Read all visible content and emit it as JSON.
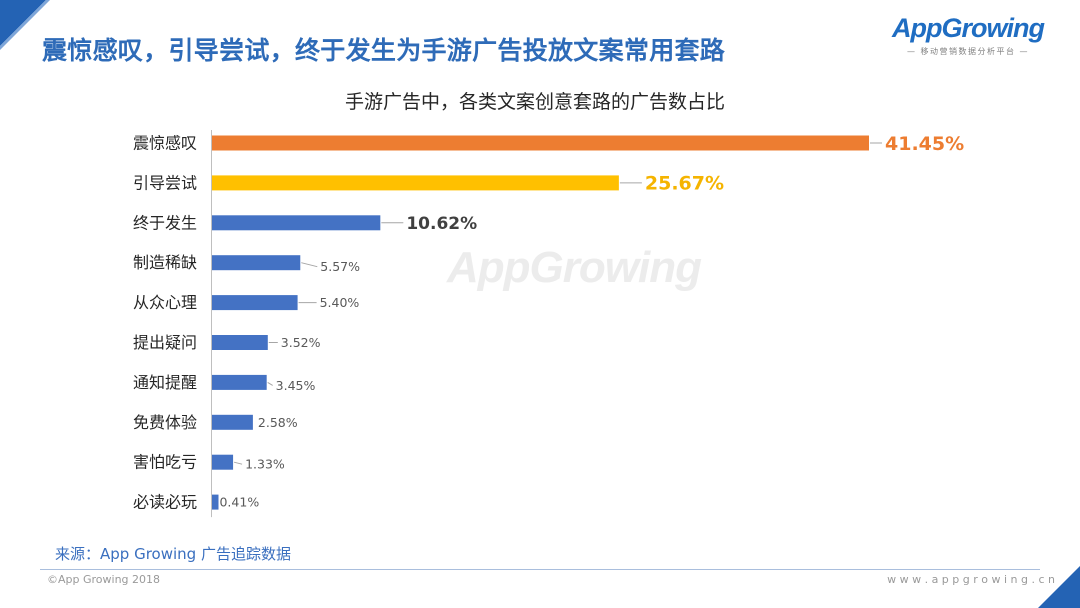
{
  "slide": {
    "title": "震惊感叹，引导尝试，终于发生为手游广告投放文案常用套路",
    "logo": {
      "name": "AppGrowing",
      "tagline": "— 移动营销数据分析平台 —"
    },
    "watermark": "AppGrowing",
    "source": "来源：App Growing 广告追踪数据",
    "copyright": "©App Growing 2018",
    "website": "w w w . a p p g r o w i n g . c n"
  },
  "colors": {
    "title": "#2E6BB8",
    "brand": "#1F6DC2",
    "corner": "#2463B4",
    "source": "#3A6FBF",
    "axis": "#BFBFBF"
  },
  "chart_data": {
    "type": "bar",
    "orientation": "horizontal",
    "title": "手游广告中，各类文案创意套路的广告数占比",
    "categories": [
      "震惊感叹",
      "引导尝试",
      "终于发生",
      "制造稀缺",
      "从众心理",
      "提出疑问",
      "通知提醒",
      "免费体验",
      "害怕吃亏",
      "必读必玩"
    ],
    "values": [
      41.45,
      25.67,
      10.62,
      5.57,
      5.4,
      3.52,
      3.45,
      2.58,
      1.33,
      0.41
    ],
    "data_labels": [
      "41.45%",
      "25.67%",
      "10.62%",
      "5.57%",
      "5.40%",
      "3.52%",
      "3.45%",
      "2.58%",
      "1.33%",
      "0.41%"
    ],
    "bar_colors": [
      "#ED7D31",
      "#FFC000",
      "#4472C4",
      "#4472C4",
      "#4472C4",
      "#4472C4",
      "#4472C4",
      "#4472C4",
      "#4472C4",
      "#4472C4"
    ],
    "label_colors": [
      "#ED7D31",
      "#F5B400",
      "#404040",
      "#595959",
      "#595959",
      "#595959",
      "#595959",
      "#595959",
      "#595959",
      "#595959"
    ],
    "grid": false,
    "legend": "none"
  }
}
